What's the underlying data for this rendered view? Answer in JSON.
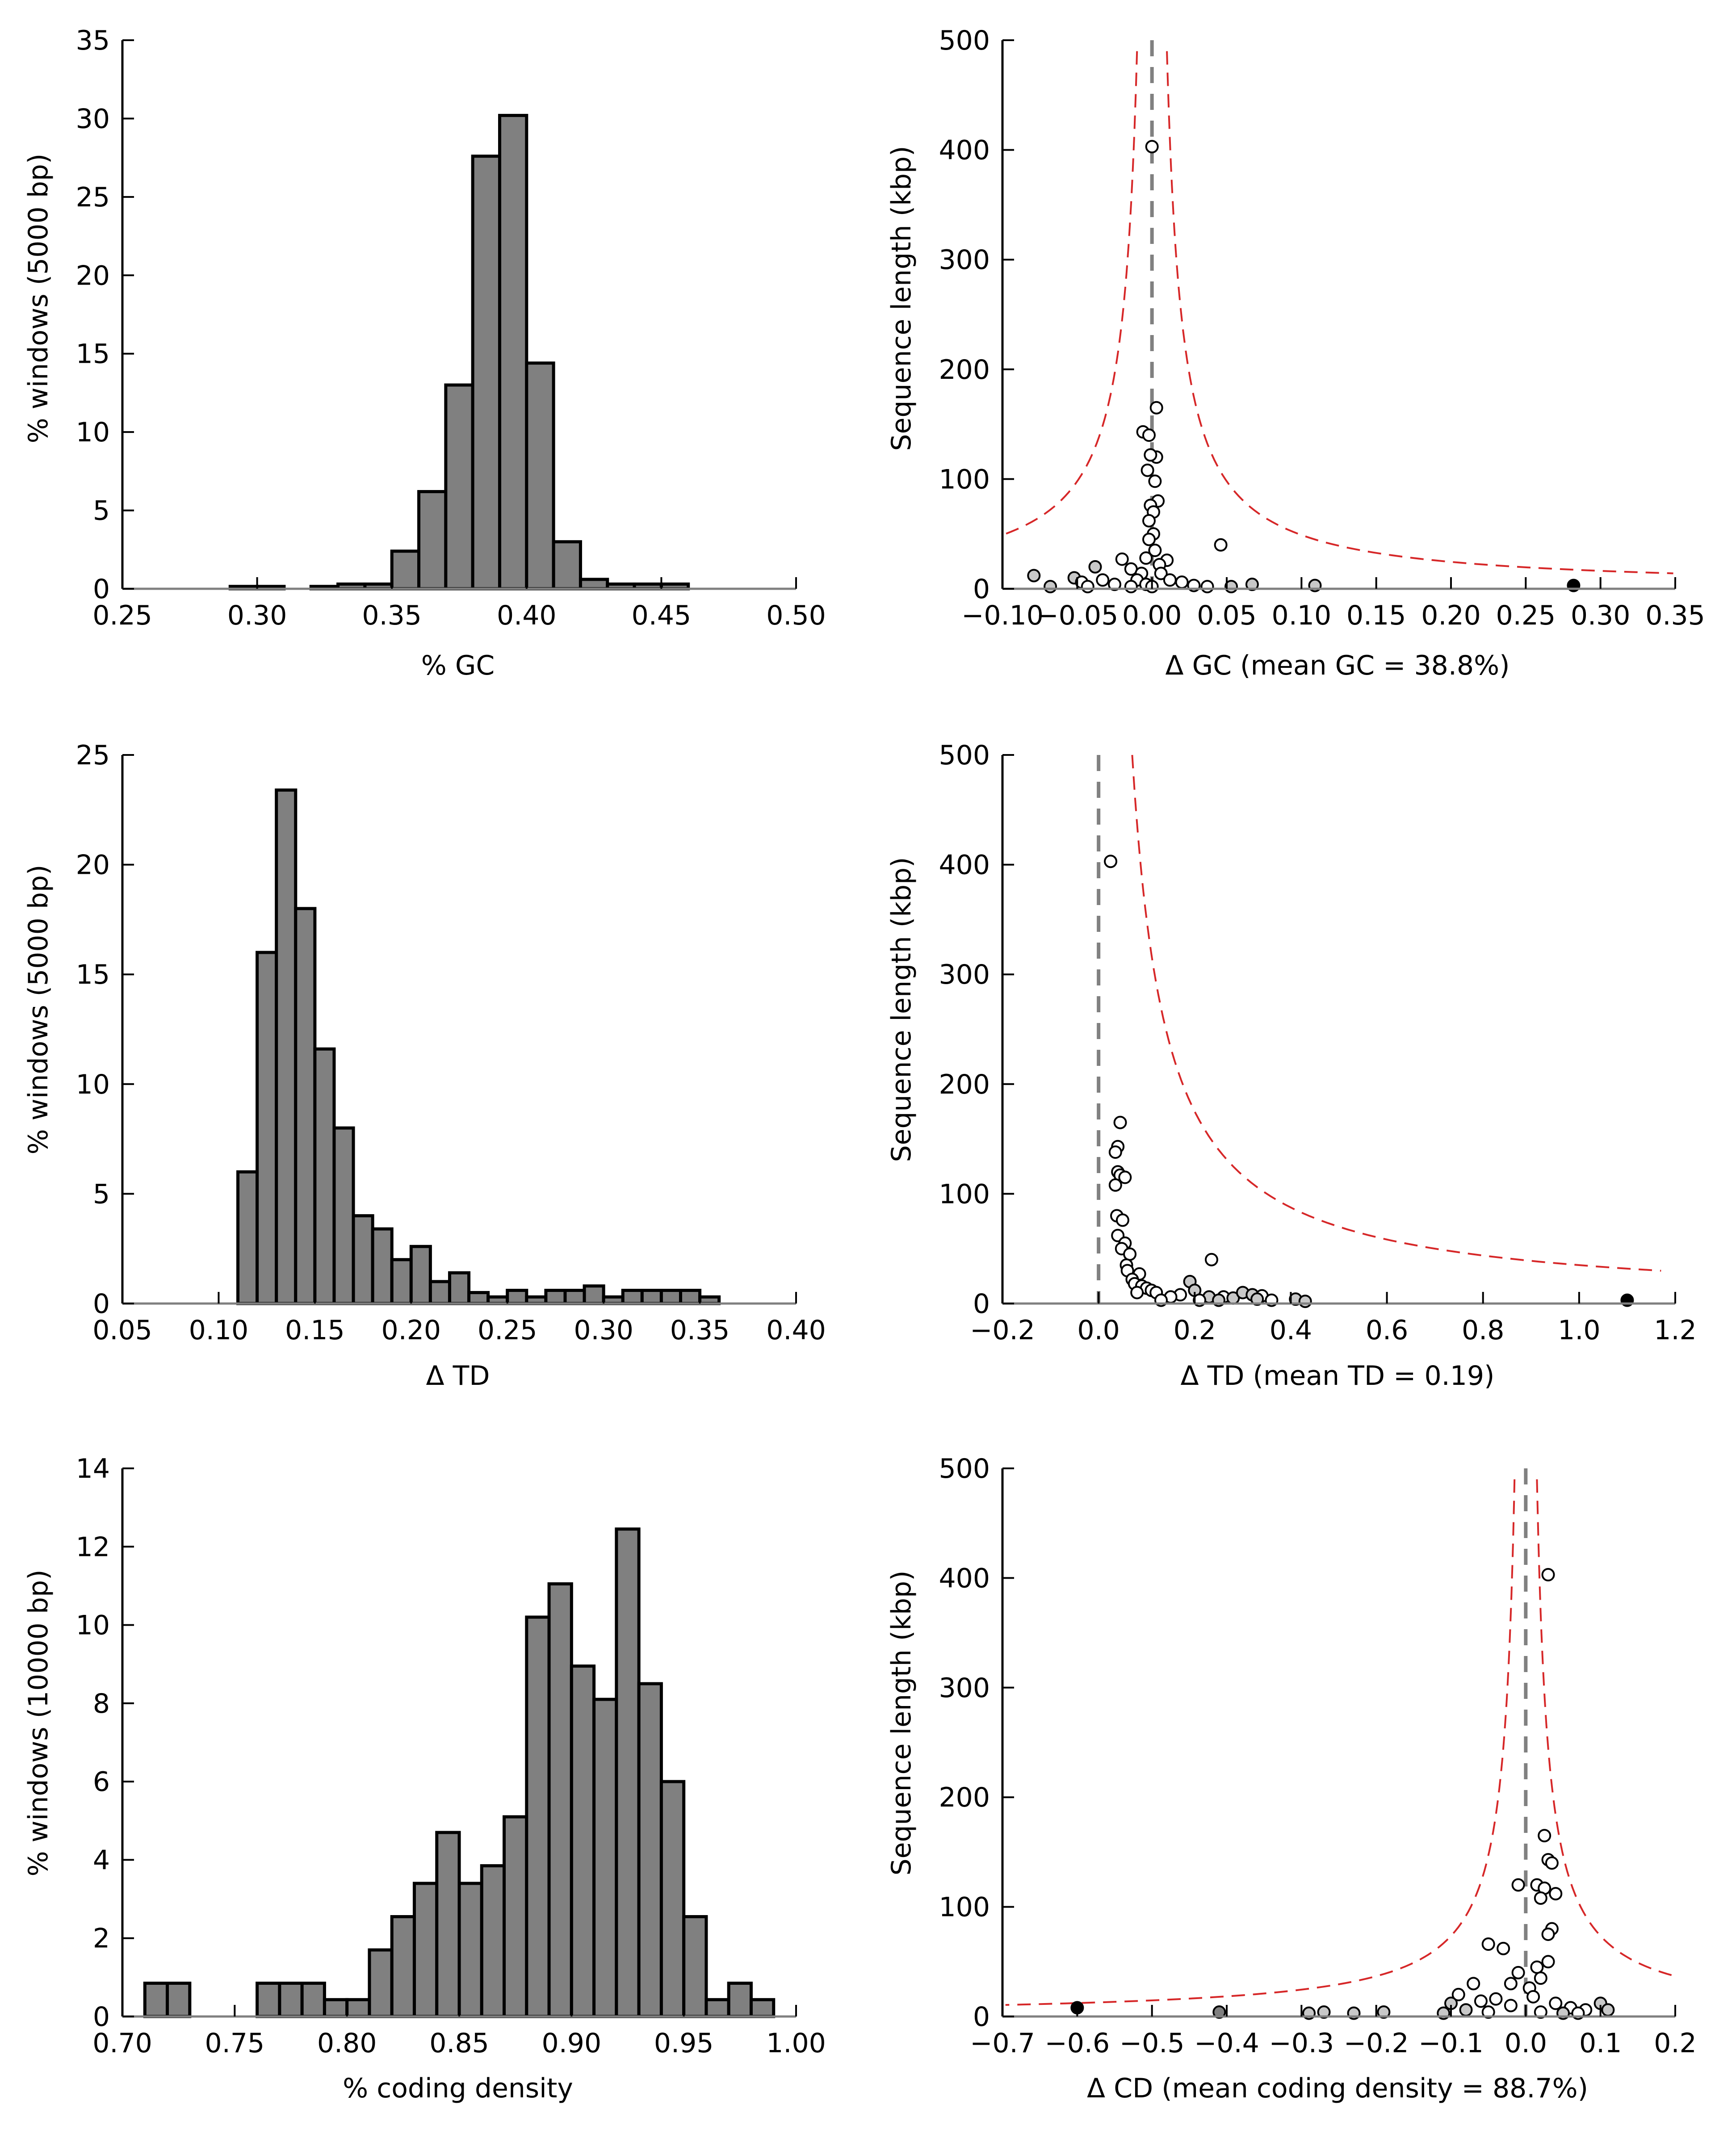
{
  "chart_data": [
    {
      "type": "bar",
      "id": "gc-histogram",
      "xlabel": "% GC",
      "ylabel": "% windows (5000 bp)",
      "xlim": [
        0.25,
        0.5
      ],
      "ylim": [
        0,
        35
      ],
      "xticks": [
        "0.25",
        "0.30",
        "0.35",
        "0.40",
        "0.45",
        "0.50"
      ],
      "yticks": [
        "0",
        "5",
        "10",
        "15",
        "20",
        "25",
        "30",
        "35"
      ],
      "bin_width": 0.01,
      "bin_starts": [
        0.29,
        0.3,
        0.32,
        0.33,
        0.34,
        0.35,
        0.36,
        0.37,
        0.38,
        0.39,
        0.4,
        0.41,
        0.42,
        0.43,
        0.44,
        0.45
      ],
      "values": [
        0.15,
        0.15,
        0.15,
        0.3,
        0.3,
        2.4,
        6.2,
        13.0,
        27.6,
        30.2,
        14.4,
        3.0,
        0.6,
        0.3,
        0.3,
        0.3
      ],
      "bar_color": "#808080"
    },
    {
      "type": "scatter",
      "id": "gc-scatter",
      "xlabel": "Δ GC (mean GC = 38.8%)",
      "ylabel": "Sequence length (kbp)",
      "xlim": [
        -0.1,
        0.35
      ],
      "ylim": [
        0,
        500
      ],
      "xticks": [
        "−0.10",
        "−0.05",
        "0.00",
        "0.05",
        "0.10",
        "0.15",
        "0.20",
        "0.25",
        "0.30",
        "0.35"
      ],
      "yticks": [
        "0",
        "100",
        "200",
        "300",
        "400",
        "500"
      ],
      "reference_line_x": 0.0,
      "bound_curve": {
        "center": 0.0,
        "left_x_at_top": -0.01,
        "right_x_at_top": 0.01,
        "y_top": 490,
        "color": "#d62728"
      },
      "points": [
        {
          "x": 0.0,
          "y": 403,
          "fill": "#ffffff"
        },
        {
          "x": 0.003,
          "y": 165,
          "fill": "#ffffff"
        },
        {
          "x": -0.006,
          "y": 143,
          "fill": "#ffffff"
        },
        {
          "x": -0.002,
          "y": 140,
          "fill": "#ffffff"
        },
        {
          "x": 0.003,
          "y": 120,
          "fill": "#ffffff"
        },
        {
          "x": -0.001,
          "y": 122,
          "fill": "#ffffff"
        },
        {
          "x": -0.003,
          "y": 108,
          "fill": "#ffffff"
        },
        {
          "x": 0.002,
          "y": 98,
          "fill": "#ffffff"
        },
        {
          "x": 0.004,
          "y": 80,
          "fill": "#ffffff"
        },
        {
          "x": -0.001,
          "y": 76,
          "fill": "#ffffff"
        },
        {
          "x": 0.001,
          "y": 70,
          "fill": "#ffffff"
        },
        {
          "x": -0.002,
          "y": 62,
          "fill": "#ffffff"
        },
        {
          "x": 0.001,
          "y": 50,
          "fill": "#ffffff"
        },
        {
          "x": -0.002,
          "y": 45,
          "fill": "#ffffff"
        },
        {
          "x": 0.046,
          "y": 40,
          "fill": "#ffffff"
        },
        {
          "x": 0.002,
          "y": 35,
          "fill": "#ffffff"
        },
        {
          "x": -0.02,
          "y": 27,
          "fill": "#ffffff"
        },
        {
          "x": -0.004,
          "y": 28,
          "fill": "#ffffff"
        },
        {
          "x": 0.01,
          "y": 26,
          "fill": "#ffffff"
        },
        {
          "x": 0.005,
          "y": 22,
          "fill": "#ffffff"
        },
        {
          "x": -0.014,
          "y": 18,
          "fill": "#ffffff"
        },
        {
          "x": -0.038,
          "y": 20,
          "fill": "#c8c8c8"
        },
        {
          "x": -0.007,
          "y": 14,
          "fill": "#ffffff"
        },
        {
          "x": 0.006,
          "y": 14,
          "fill": "#ffffff"
        },
        {
          "x": -0.079,
          "y": 12,
          "fill": "#c8c8c8"
        },
        {
          "x": -0.052,
          "y": 10,
          "fill": "#c8c8c8"
        },
        {
          "x": -0.033,
          "y": 8,
          "fill": "#ffffff"
        },
        {
          "x": -0.01,
          "y": 8,
          "fill": "#ffffff"
        },
        {
          "x": 0.012,
          "y": 8,
          "fill": "#ffffff"
        },
        {
          "x": 0.02,
          "y": 6,
          "fill": "#ffffff"
        },
        {
          "x": -0.047,
          "y": 6,
          "fill": "#ffffff"
        },
        {
          "x": -0.025,
          "y": 4,
          "fill": "#ffffff"
        },
        {
          "x": -0.004,
          "y": 4,
          "fill": "#ffffff"
        },
        {
          "x": 0.028,
          "y": 3,
          "fill": "#ffffff"
        },
        {
          "x": 0.067,
          "y": 4,
          "fill": "#c8c8c8"
        },
        {
          "x": 0.109,
          "y": 3,
          "fill": "#c8c8c8"
        },
        {
          "x": 0.282,
          "y": 3,
          "fill": "#000000"
        },
        {
          "x": -0.068,
          "y": 2,
          "fill": "#c8c8c8"
        },
        {
          "x": -0.043,
          "y": 2,
          "fill": "#ffffff"
        },
        {
          "x": 0.037,
          "y": 2,
          "fill": "#ffffff"
        },
        {
          "x": 0.053,
          "y": 2,
          "fill": "#c8c8c8"
        },
        {
          "x": -0.014,
          "y": 2,
          "fill": "#ffffff"
        },
        {
          "x": 0.0,
          "y": 2,
          "fill": "#ffffff"
        }
      ]
    },
    {
      "type": "bar",
      "id": "td-histogram",
      "xlabel": "Δ TD",
      "ylabel": "% windows (5000 bp)",
      "xlim": [
        0.05,
        0.4
      ],
      "ylim": [
        0,
        25
      ],
      "xticks": [
        "0.05",
        "0.10",
        "0.15",
        "0.20",
        "0.25",
        "0.30",
        "0.35",
        "0.40"
      ],
      "yticks": [
        "0",
        "5",
        "10",
        "15",
        "20",
        "25"
      ],
      "bin_width": 0.01,
      "bin_starts": [
        0.11,
        0.12,
        0.13,
        0.14,
        0.15,
        0.16,
        0.17,
        0.18,
        0.19,
        0.2,
        0.21,
        0.22,
        0.23,
        0.24,
        0.25,
        0.26,
        0.27,
        0.28,
        0.29,
        0.3,
        0.31,
        0.32,
        0.33,
        0.34,
        0.35
      ],
      "values": [
        6.0,
        16.0,
        23.4,
        18.0,
        11.6,
        8.0,
        4.0,
        3.4,
        2.0,
        2.6,
        1.0,
        1.4,
        0.5,
        0.3,
        0.6,
        0.3,
        0.6,
        0.6,
        0.8,
        0.3,
        0.6,
        0.6,
        0.6,
        0.6,
        0.3
      ],
      "bar_color": "#808080"
    },
    {
      "type": "scatter",
      "id": "td-scatter",
      "xlabel": "Δ TD (mean TD = 0.19)",
      "ylabel": "Sequence length (kbp)",
      "xlim": [
        -0.2,
        1.2
      ],
      "ylim": [
        0,
        500
      ],
      "xticks": [
        "−0.2",
        "0.0",
        "0.2",
        "0.4",
        "0.6",
        "0.8",
        "1.0",
        "1.2"
      ],
      "yticks": [
        "0",
        "100",
        "200",
        "300",
        "400",
        "500"
      ],
      "reference_line_x": 0.0,
      "bound_curve": {
        "center": 0.0,
        "left_x_at_top": null,
        "right_x_at_top": 0.07,
        "y_top": 500,
        "color": "#d62728"
      },
      "points": [
        {
          "x": 0.025,
          "y": 403,
          "fill": "#ffffff"
        },
        {
          "x": 0.045,
          "y": 165,
          "fill": "#ffffff"
        },
        {
          "x": 0.04,
          "y": 143,
          "fill": "#ffffff"
        },
        {
          "x": 0.035,
          "y": 138,
          "fill": "#ffffff"
        },
        {
          "x": 0.04,
          "y": 120,
          "fill": "#ffffff"
        },
        {
          "x": 0.045,
          "y": 117,
          "fill": "#ffffff"
        },
        {
          "x": 0.055,
          "y": 115,
          "fill": "#ffffff"
        },
        {
          "x": 0.035,
          "y": 108,
          "fill": "#ffffff"
        },
        {
          "x": 0.038,
          "y": 80,
          "fill": "#ffffff"
        },
        {
          "x": 0.05,
          "y": 76,
          "fill": "#ffffff"
        },
        {
          "x": 0.04,
          "y": 62,
          "fill": "#ffffff"
        },
        {
          "x": 0.055,
          "y": 55,
          "fill": "#ffffff"
        },
        {
          "x": 0.048,
          "y": 50,
          "fill": "#ffffff"
        },
        {
          "x": 0.065,
          "y": 45,
          "fill": "#ffffff"
        },
        {
          "x": 0.058,
          "y": 35,
          "fill": "#ffffff"
        },
        {
          "x": 0.06,
          "y": 30,
          "fill": "#ffffff"
        },
        {
          "x": 0.085,
          "y": 27,
          "fill": "#ffffff"
        },
        {
          "x": 0.07,
          "y": 22,
          "fill": "#ffffff"
        },
        {
          "x": 0.075,
          "y": 18,
          "fill": "#ffffff"
        },
        {
          "x": 0.09,
          "y": 16,
          "fill": "#ffffff"
        },
        {
          "x": 0.1,
          "y": 14,
          "fill": "#ffffff"
        },
        {
          "x": 0.11,
          "y": 12,
          "fill": "#ffffff"
        },
        {
          "x": 0.12,
          "y": 10,
          "fill": "#ffffff"
        },
        {
          "x": 0.08,
          "y": 10,
          "fill": "#ffffff"
        },
        {
          "x": 0.235,
          "y": 40,
          "fill": "#ffffff"
        },
        {
          "x": 0.19,
          "y": 20,
          "fill": "#c8c8c8"
        },
        {
          "x": 0.2,
          "y": 12,
          "fill": "#c8c8c8"
        },
        {
          "x": 0.17,
          "y": 8,
          "fill": "#ffffff"
        },
        {
          "x": 0.15,
          "y": 6,
          "fill": "#ffffff"
        },
        {
          "x": 0.23,
          "y": 6,
          "fill": "#c8c8c8"
        },
        {
          "x": 0.26,
          "y": 6,
          "fill": "#ffffff"
        },
        {
          "x": 0.28,
          "y": 5,
          "fill": "#c8c8c8"
        },
        {
          "x": 0.3,
          "y": 10,
          "fill": "#c8c8c8"
        },
        {
          "x": 0.32,
          "y": 8,
          "fill": "#c8c8c8"
        },
        {
          "x": 0.34,
          "y": 7,
          "fill": "#ffffff"
        },
        {
          "x": 0.33,
          "y": 4,
          "fill": "#c8c8c8"
        },
        {
          "x": 0.36,
          "y": 3,
          "fill": "#ffffff"
        },
        {
          "x": 0.41,
          "y": 4,
          "fill": "#c8c8c8"
        },
        {
          "x": 0.43,
          "y": 2,
          "fill": "#c8c8c8"
        },
        {
          "x": 0.25,
          "y": 3,
          "fill": "#c8c8c8"
        },
        {
          "x": 0.13,
          "y": 3,
          "fill": "#ffffff"
        },
        {
          "x": 0.21,
          "y": 3,
          "fill": "#ffffff"
        },
        {
          "x": 1.1,
          "y": 3,
          "fill": "#000000"
        }
      ]
    },
    {
      "type": "bar",
      "id": "cd-histogram",
      "xlabel": "% coding density",
      "ylabel": "% windows (10000 bp)",
      "xlim": [
        0.7,
        1.0
      ],
      "ylim": [
        0,
        14
      ],
      "xticks": [
        "0.70",
        "0.75",
        "0.80",
        "0.85",
        "0.90",
        "0.95",
        "1.00"
      ],
      "yticks": [
        "0",
        "2",
        "4",
        "6",
        "8",
        "10",
        "12",
        "14"
      ],
      "bin_width": 0.01,
      "bin_starts": [
        0.71,
        0.72,
        0.76,
        0.77,
        0.78,
        0.79,
        0.8,
        0.81,
        0.82,
        0.83,
        0.84,
        0.85,
        0.86,
        0.87,
        0.88,
        0.89,
        0.9,
        0.91,
        0.92,
        0.93,
        0.94,
        0.95,
        0.96,
        0.97,
        0.98
      ],
      "values": [
        0.85,
        0.85,
        0.85,
        0.85,
        0.85,
        0.43,
        0.43,
        1.7,
        2.55,
        3.4,
        4.7,
        3.4,
        3.85,
        5.1,
        10.2,
        11.05,
        8.95,
        8.1,
        12.45,
        8.5,
        6.0,
        2.55,
        0.43,
        0.85,
        0.43
      ],
      "bar_color": "#808080"
    },
    {
      "type": "scatter",
      "id": "cd-scatter",
      "xlabel": "Δ CD (mean coding density = 88.7%)",
      "ylabel": "Sequence length (kbp)",
      "xlim": [
        -0.7,
        0.2
      ],
      "ylim": [
        0,
        500
      ],
      "xticks": [
        "−0.7",
        "−0.6",
        "−0.5",
        "−0.4",
        "−0.3",
        "−0.2",
        "−0.1",
        "0.0",
        "0.1",
        "0.2"
      ],
      "yticks": [
        "0",
        "100",
        "200",
        "300",
        "400",
        "500"
      ],
      "reference_line_x": 0.0,
      "bound_curve": {
        "center": 0.0,
        "left_x_at_top": -0.015,
        "right_x_at_top": 0.015,
        "y_top": 490,
        "color": "#d62728"
      },
      "points": [
        {
          "x": 0.03,
          "y": 403,
          "fill": "#ffffff"
        },
        {
          "x": 0.025,
          "y": 165,
          "fill": "#ffffff"
        },
        {
          "x": 0.03,
          "y": 143,
          "fill": "#ffffff"
        },
        {
          "x": 0.035,
          "y": 140,
          "fill": "#ffffff"
        },
        {
          "x": -0.01,
          "y": 120,
          "fill": "#ffffff"
        },
        {
          "x": 0.015,
          "y": 120,
          "fill": "#ffffff"
        },
        {
          "x": 0.025,
          "y": 117,
          "fill": "#ffffff"
        },
        {
          "x": 0.04,
          "y": 112,
          "fill": "#ffffff"
        },
        {
          "x": 0.02,
          "y": 108,
          "fill": "#ffffff"
        },
        {
          "x": 0.035,
          "y": 80,
          "fill": "#ffffff"
        },
        {
          "x": 0.03,
          "y": 75,
          "fill": "#ffffff"
        },
        {
          "x": -0.05,
          "y": 66,
          "fill": "#ffffff"
        },
        {
          "x": -0.03,
          "y": 62,
          "fill": "#ffffff"
        },
        {
          "x": 0.03,
          "y": 50,
          "fill": "#ffffff"
        },
        {
          "x": 0.015,
          "y": 45,
          "fill": "#ffffff"
        },
        {
          "x": -0.01,
          "y": 40,
          "fill": "#ffffff"
        },
        {
          "x": 0.02,
          "y": 35,
          "fill": "#ffffff"
        },
        {
          "x": -0.02,
          "y": 30,
          "fill": "#ffffff"
        },
        {
          "x": -0.07,
          "y": 30,
          "fill": "#ffffff"
        },
        {
          "x": 0.005,
          "y": 26,
          "fill": "#ffffff"
        },
        {
          "x": -0.09,
          "y": 20,
          "fill": "#ffffff"
        },
        {
          "x": 0.01,
          "y": 18,
          "fill": "#ffffff"
        },
        {
          "x": -0.04,
          "y": 16,
          "fill": "#ffffff"
        },
        {
          "x": -0.06,
          "y": 14,
          "fill": "#ffffff"
        },
        {
          "x": -0.1,
          "y": 12,
          "fill": "#c8c8c8"
        },
        {
          "x": 0.04,
          "y": 12,
          "fill": "#ffffff"
        },
        {
          "x": 0.1,
          "y": 12,
          "fill": "#c8c8c8"
        },
        {
          "x": -0.02,
          "y": 10,
          "fill": "#ffffff"
        },
        {
          "x": 0.06,
          "y": 8,
          "fill": "#ffffff"
        },
        {
          "x": 0.08,
          "y": 6,
          "fill": "#ffffff"
        },
        {
          "x": -0.08,
          "y": 6,
          "fill": "#c8c8c8"
        },
        {
          "x": 0.11,
          "y": 6,
          "fill": "#c8c8c8"
        },
        {
          "x": -0.05,
          "y": 4,
          "fill": "#ffffff"
        },
        {
          "x": 0.02,
          "y": 4,
          "fill": "#ffffff"
        },
        {
          "x": 0.05,
          "y": 3,
          "fill": "#c8c8c8"
        },
        {
          "x": 0.07,
          "y": 3,
          "fill": "#ffffff"
        },
        {
          "x": -0.11,
          "y": 3,
          "fill": "#c8c8c8"
        },
        {
          "x": -0.19,
          "y": 4,
          "fill": "#c8c8c8"
        },
        {
          "x": -0.23,
          "y": 3,
          "fill": "#c8c8c8"
        },
        {
          "x": -0.27,
          "y": 4,
          "fill": "#c8c8c8"
        },
        {
          "x": -0.29,
          "y": 3,
          "fill": "#c8c8c8"
        },
        {
          "x": -0.41,
          "y": 4,
          "fill": "#808080"
        },
        {
          "x": -0.6,
          "y": 8,
          "fill": "#000000"
        }
      ]
    }
  ]
}
